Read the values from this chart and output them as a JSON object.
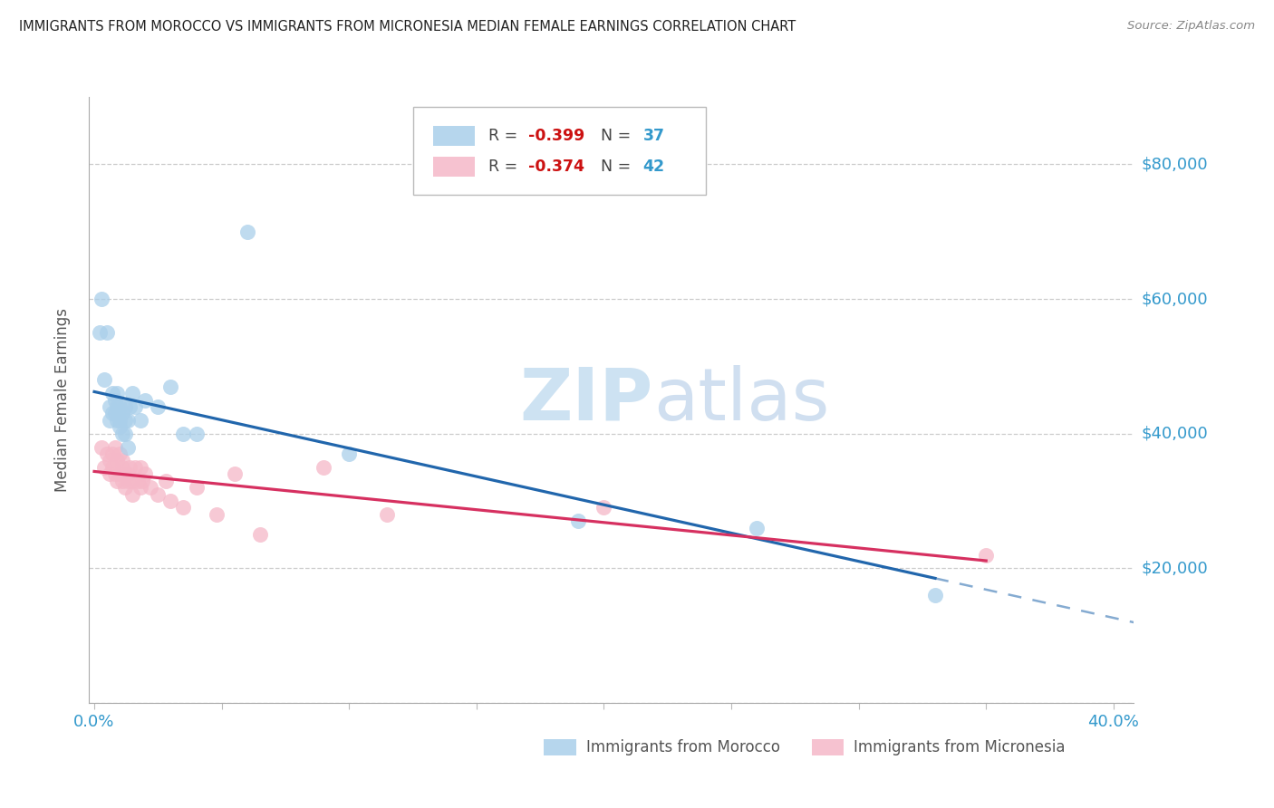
{
  "title": "IMMIGRANTS FROM MOROCCO VS IMMIGRANTS FROM MICRONESIA MEDIAN FEMALE EARNINGS CORRELATION CHART",
  "source": "Source: ZipAtlas.com",
  "ylabel": "Median Female Earnings",
  "xlim": [
    -0.002,
    0.408
  ],
  "ylim": [
    0,
    90000
  ],
  "yticks": [
    0,
    20000,
    40000,
    60000,
    80000
  ],
  "ytick_labels": [
    "",
    "$20,000",
    "$40,000",
    "$60,000",
    "$80,000"
  ],
  "xtick_positions": [
    0.0,
    0.05,
    0.1,
    0.15,
    0.2,
    0.25,
    0.3,
    0.35,
    0.4
  ],
  "xtick_labels": [
    "0.0%",
    "",
    "",
    "",
    "",
    "",
    "",
    "",
    "40.0%"
  ],
  "morocco_color": "#aacfea",
  "micronesia_color": "#f5b8c8",
  "line_morocco_color": "#2166ac",
  "line_micronesia_color": "#d63060",
  "r_morocco": -0.399,
  "n_morocco": 37,
  "r_micronesia": -0.374,
  "n_micronesia": 42,
  "axis_label_color": "#3399cc",
  "r_color": "#cc1111",
  "n_color": "#3399cc",
  "watermark_color": "#ddeeff",
  "grid_color": "#cccccc",
  "morocco_x": [
    0.002,
    0.003,
    0.004,
    0.005,
    0.006,
    0.006,
    0.007,
    0.007,
    0.008,
    0.008,
    0.009,
    0.009,
    0.009,
    0.01,
    0.01,
    0.01,
    0.011,
    0.011,
    0.012,
    0.012,
    0.012,
    0.013,
    0.013,
    0.014,
    0.015,
    0.016,
    0.018,
    0.02,
    0.025,
    0.03,
    0.035,
    0.04,
    0.06,
    0.1,
    0.19,
    0.26,
    0.33
  ],
  "morocco_y": [
    55000,
    60000,
    48000,
    55000,
    44000,
    42000,
    46000,
    43000,
    45000,
    43000,
    46000,
    44000,
    42000,
    44000,
    42000,
    41000,
    43000,
    40000,
    44000,
    42000,
    40000,
    42000,
    38000,
    44000,
    46000,
    44000,
    42000,
    45000,
    44000,
    47000,
    40000,
    40000,
    70000,
    37000,
    27000,
    26000,
    16000
  ],
  "micronesia_x": [
    0.003,
    0.004,
    0.005,
    0.006,
    0.006,
    0.007,
    0.007,
    0.008,
    0.008,
    0.009,
    0.009,
    0.01,
    0.01,
    0.011,
    0.011,
    0.011,
    0.012,
    0.012,
    0.013,
    0.013,
    0.014,
    0.015,
    0.015,
    0.016,
    0.017,
    0.018,
    0.018,
    0.019,
    0.02,
    0.022,
    0.025,
    0.028,
    0.03,
    0.035,
    0.04,
    0.048,
    0.055,
    0.065,
    0.09,
    0.115,
    0.2,
    0.35
  ],
  "micronesia_y": [
    38000,
    35000,
    37000,
    36000,
    34000,
    37000,
    35000,
    38000,
    34000,
    36000,
    33000,
    37000,
    34000,
    35000,
    33000,
    36000,
    34000,
    32000,
    34000,
    33000,
    35000,
    33000,
    31000,
    35000,
    33000,
    35000,
    32000,
    33000,
    34000,
    32000,
    31000,
    33000,
    30000,
    29000,
    32000,
    28000,
    34000,
    25000,
    35000,
    28000,
    29000,
    22000
  ]
}
